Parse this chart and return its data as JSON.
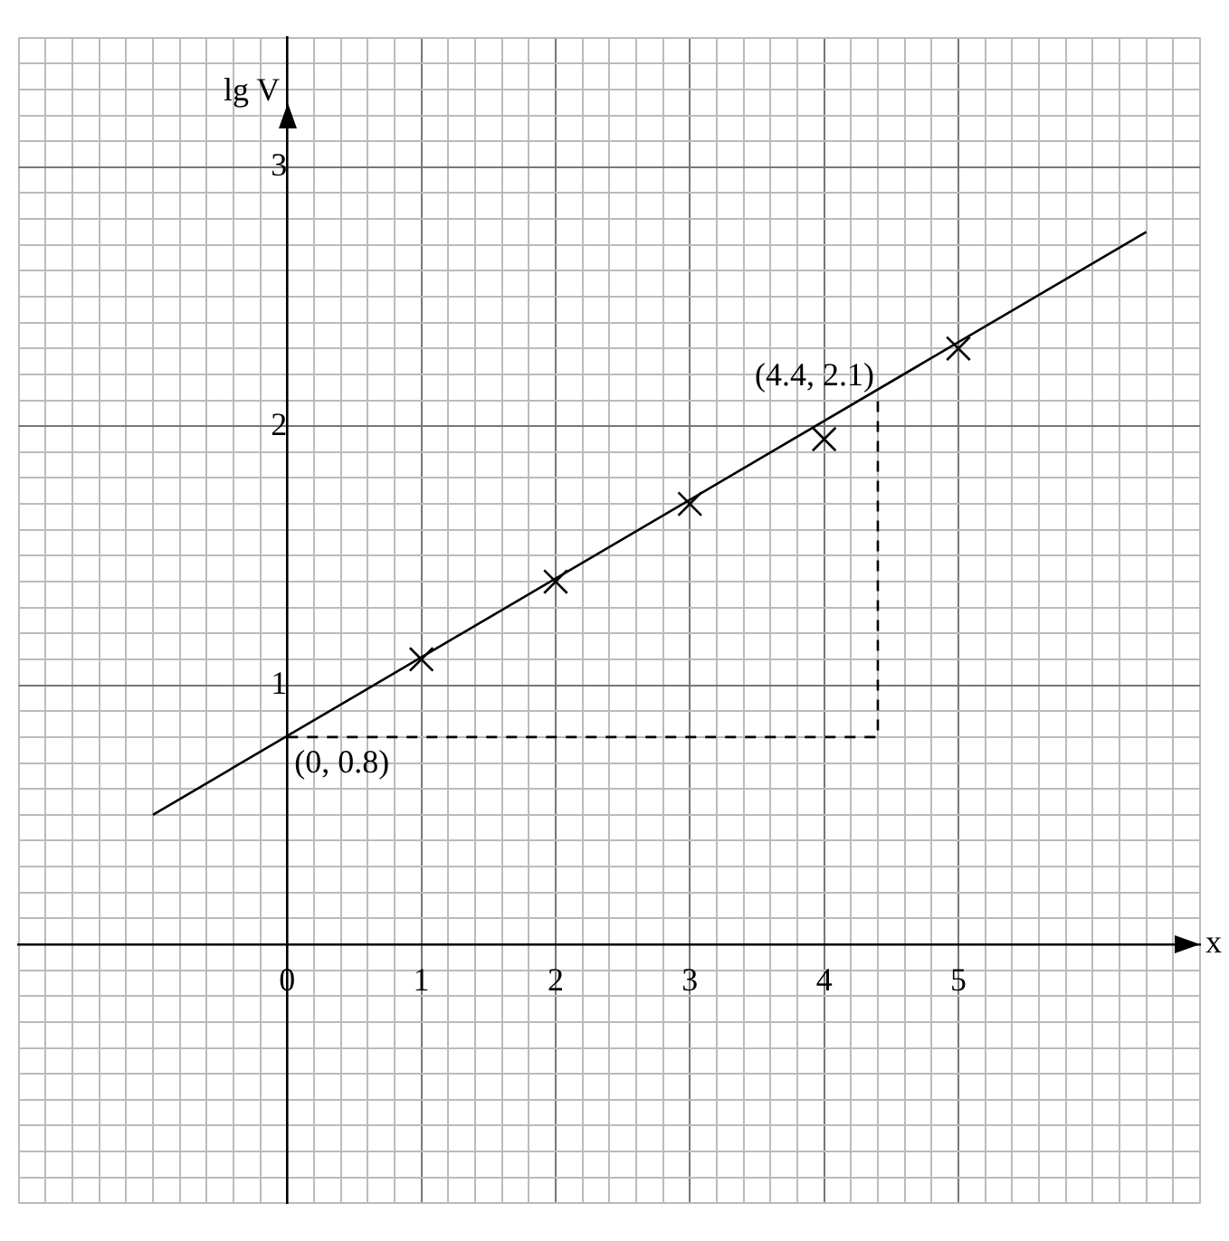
{
  "chart_data": {
    "type": "scatter",
    "xlabel": "x",
    "ylabel": "lg V",
    "xlim": [
      -2,
      6.8
    ],
    "ylim": [
      -1,
      3.5
    ],
    "xticks": [
      {
        "value": -2,
        "label": null
      },
      {
        "value": -1.8,
        "label": null
      },
      {
        "value": -1.6,
        "label": null
      },
      {
        "value": -1.4,
        "label": null
      },
      {
        "value": -1.2,
        "label": null
      },
      {
        "value": -1,
        "label": null
      },
      {
        "value": -0.8,
        "label": null
      },
      {
        "value": -0.6,
        "label": null
      },
      {
        "value": -0.4,
        "label": null
      },
      {
        "value": -0.2,
        "label": null
      },
      0,
      {
        "value": 0.2,
        "label": null
      },
      {
        "value": 0.4,
        "label": null
      },
      {
        "value": 0.6,
        "label": null
      },
      {
        "value": 0.8,
        "label": null
      },
      1,
      {
        "value": 1.2,
        "label": null
      },
      {
        "value": 1.4,
        "label": null
      },
      {
        "value": 1.6,
        "label": null
      },
      {
        "value": 1.8,
        "label": null
      },
      2,
      {
        "value": 2.2,
        "label": null
      },
      {
        "value": 2.4,
        "label": null
      },
      {
        "value": 2.6,
        "label": null
      },
      {
        "value": 2.8,
        "label": null
      },
      3,
      {
        "value": 3.2,
        "label": null
      },
      {
        "value": 3.4,
        "label": null
      },
      {
        "value": 3.6,
        "label": null
      },
      {
        "value": 3.8,
        "label": null
      },
      4,
      {
        "value": 4.2,
        "label": null
      },
      {
        "value": 4.4,
        "label": null
      },
      {
        "value": 4.6,
        "label": null
      },
      {
        "value": 4.8,
        "label": null
      },
      5,
      {
        "value": 5.2,
        "label": null
      },
      {
        "value": 5.4,
        "label": null
      },
      {
        "value": 5.6,
        "label": null
      },
      {
        "value": 5.8,
        "label": null
      },
      {
        "value": 6,
        "label": null
      },
      {
        "value": 6.2,
        "label": null
      },
      {
        "value": 6.4,
        "label": null
      },
      {
        "value": 6.6,
        "label": null
      },
      {
        "value": 6.8,
        "label": null
      }
    ],
    "yticks": [
      {
        "value": -1,
        "label": null
      },
      {
        "value": -0.9,
        "label": null
      },
      {
        "value": -0.8,
        "label": null
      },
      {
        "value": -0.7,
        "label": null
      },
      {
        "value": -0.6,
        "label": null
      },
      {
        "value": -0.5,
        "label": null
      },
      {
        "value": -0.4,
        "label": null
      },
      {
        "value": -0.3,
        "label": null
      },
      {
        "value": -0.2,
        "label": null
      },
      {
        "value": -0.1,
        "label": null
      },
      {
        "value": 0,
        "label": null
      },
      {
        "value": 0.1,
        "label": null
      },
      {
        "value": 0.2,
        "label": null
      },
      {
        "value": 0.3,
        "label": null
      },
      {
        "value": 0.4,
        "label": null
      },
      {
        "value": 0.5,
        "label": null
      },
      {
        "value": 0.6,
        "label": null
      },
      {
        "value": 0.7,
        "label": null
      },
      {
        "value": 0.8,
        "label": null
      },
      {
        "value": 0.9,
        "label": null
      },
      1,
      {
        "value": 1.1,
        "label": null
      },
      {
        "value": 1.2,
        "label": null
      },
      {
        "value": 1.3,
        "label": null
      },
      {
        "value": 1.4,
        "label": null
      },
      {
        "value": 1.5,
        "label": null
      },
      {
        "value": 1.6,
        "label": null
      },
      {
        "value": 1.7,
        "label": null
      },
      {
        "value": 1.8,
        "label": null
      },
      {
        "value": 1.9,
        "label": null
      },
      2,
      {
        "value": 2.1,
        "label": null
      },
      {
        "value": 2.2,
        "label": null
      },
      {
        "value": 2.3,
        "label": null
      },
      {
        "value": 2.4,
        "label": null
      },
      {
        "value": 2.5,
        "label": null
      },
      {
        "value": 2.6,
        "label": null
      },
      {
        "value": 2.7,
        "label": null
      },
      {
        "value": 2.8,
        "label": null
      },
      {
        "value": 2.9,
        "label": null
      },
      3,
      {
        "value": 3.1,
        "label": null
      },
      {
        "value": 3.2,
        "label": null
      },
      {
        "value": 3.3,
        "label": null
      },
      {
        "value": 3.4,
        "label": null
      },
      {
        "value": 3.5,
        "label": null
      }
    ],
    "grid": true,
    "legend": false,
    "series": [
      {
        "type": "scatter",
        "color": "#000000",
        "marker": "cross",
        "x": [
          1,
          2,
          3,
          4,
          5
        ],
        "values": [
          1.1,
          1.4,
          1.7,
          1.95,
          2.3
        ]
      },
      {
        "type": "line",
        "color": "#000000",
        "marker": "none",
        "line_style": "solid",
        "x": [
          -1,
          6.4
        ],
        "values": [
          0.5,
          2.75
        ]
      },
      {
        "type": "line",
        "color": "#000000",
        "marker": "none",
        "line_style": "dashed",
        "x": [
          0,
          4.4,
          4.4
        ],
        "values": [
          0.8,
          0.8,
          2.1
        ]
      }
    ],
    "annotations": [
      {
        "text": "(4.4, 2.1)",
        "x": 4.4,
        "y": 2.1
      },
      {
        "text": "(0, 0.8)",
        "x": 0,
        "y": 0.8
      }
    ]
  }
}
